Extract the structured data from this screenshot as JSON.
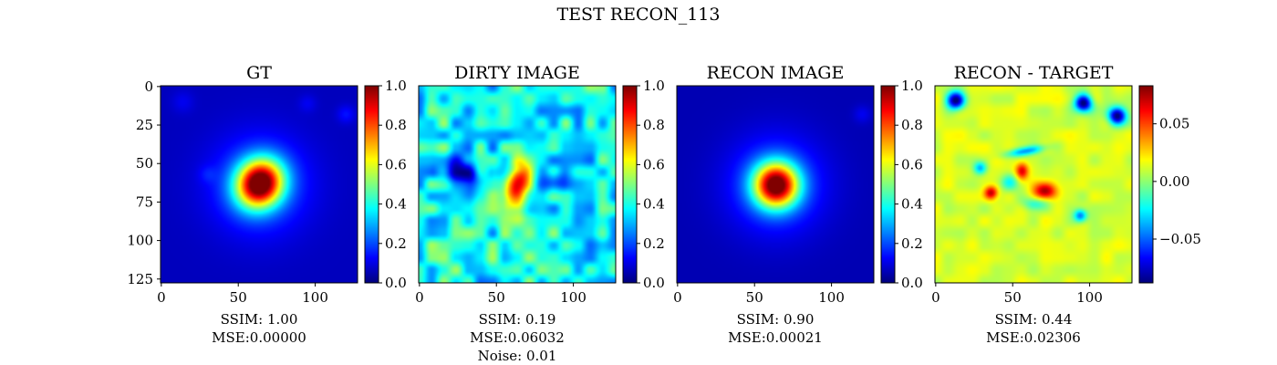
{
  "figure": {
    "title": "TEST RECON_113"
  },
  "chart_data": [
    {
      "type": "heatmap",
      "title": "GT",
      "xticks": [
        "0",
        "50",
        "100"
      ],
      "yticks": [
        "0",
        "25",
        "50",
        "75",
        "100",
        "125"
      ],
      "xlim": [
        0,
        128
      ],
      "ylim": [
        128,
        0
      ],
      "colormap": "jet",
      "image": {
        "background": 0.06,
        "blobs": [
          {
            "x": 64,
            "y": 63,
            "sigma_x": 10,
            "sigma_y": 11,
            "amplitude": 0.92,
            "angle": 35
          },
          {
            "x": 64,
            "y": 64,
            "sigma_x": 22,
            "sigma_y": 22,
            "amplitude": 0.18,
            "angle": 0
          },
          {
            "x": 120,
            "y": 18,
            "sigma_x": 4,
            "sigma_y": 4,
            "amplitude": 0.08,
            "angle": 0
          },
          {
            "x": 95,
            "y": 11,
            "sigma_x": 4,
            "sigma_y": 4,
            "amplitude": 0.05,
            "angle": 0
          },
          {
            "x": 14,
            "y": 10,
            "sigma_x": 5,
            "sigma_y": 5,
            "amplitude": 0.05,
            "angle": 0
          },
          {
            "x": 30,
            "y": 57,
            "sigma_x": 4,
            "sigma_y": 4,
            "amplitude": 0.05,
            "angle": 0
          }
        ]
      },
      "colorbar": {
        "min": 0.0,
        "max": 1.0,
        "ticks": [
          "0.0",
          "0.2",
          "0.4",
          "0.6",
          "0.8",
          "1.0"
        ]
      },
      "metrics": [
        "SSIM: 1.00",
        "MSE:0.00000"
      ]
    },
    {
      "type": "heatmap",
      "title": "DIRTY IMAGE",
      "xticks": [
        "0",
        "50",
        "100"
      ],
      "yticks": [],
      "xlim": [
        0,
        128
      ],
      "ylim": [
        128,
        0
      ],
      "colormap": "jet",
      "image": {
        "background": 0.38,
        "noise": 0.16,
        "blobs": [
          {
            "x": 64,
            "y": 62,
            "sigma_x": 5,
            "sigma_y": 9,
            "amplitude": 0.55,
            "angle": 20
          },
          {
            "x": 64,
            "y": 75,
            "sigma_x": 4,
            "sigma_y": 8,
            "amplitude": 0.22,
            "angle": 0
          },
          {
            "x": 24,
            "y": 55,
            "sigma_x": 8,
            "sigma_y": 6,
            "amplitude": -0.22,
            "angle": 0
          },
          {
            "x": 35,
            "y": 62,
            "sigma_x": 6,
            "sigma_y": 6,
            "amplitude": -0.2,
            "angle": 0
          },
          {
            "x": 88,
            "y": 60,
            "sigma_x": 6,
            "sigma_y": 6,
            "amplitude": -0.18,
            "angle": 0
          }
        ]
      },
      "colorbar": {
        "min": 0.0,
        "max": 1.0,
        "ticks": [
          "0.0",
          "0.2",
          "0.4",
          "0.6",
          "0.8",
          "1.0"
        ]
      },
      "metrics": [
        "SSIM: 0.19",
        "MSE:0.06032",
        "Noise: 0.01"
      ]
    },
    {
      "type": "heatmap",
      "title": "RECON IMAGE",
      "xticks": [
        "0",
        "50",
        "100"
      ],
      "yticks": [],
      "xlim": [
        0,
        128
      ],
      "ylim": [
        128,
        0
      ],
      "colormap": "jet",
      "image": {
        "background": 0.05,
        "blobs": [
          {
            "x": 64,
            "y": 64,
            "sigma_x": 10,
            "sigma_y": 10,
            "amplitude": 0.88,
            "angle": 0
          },
          {
            "x": 64,
            "y": 64,
            "sigma_x": 22,
            "sigma_y": 22,
            "amplitude": 0.18,
            "angle": 0
          },
          {
            "x": 120,
            "y": 18,
            "sigma_x": 4,
            "sigma_y": 4,
            "amplitude": 0.06,
            "angle": 0
          }
        ]
      },
      "colorbar": {
        "min": 0.0,
        "max": 1.0,
        "ticks": [
          "0.0",
          "0.2",
          "0.4",
          "0.6",
          "0.8",
          "1.0"
        ]
      },
      "metrics": [
        "SSIM: 0.90",
        "MSE:0.00021"
      ]
    },
    {
      "type": "heatmap",
      "title": "RECON - TARGET",
      "xticks": [
        "0",
        "50",
        "100"
      ],
      "yticks": [],
      "xlim": [
        0,
        128
      ],
      "ylim": [
        128,
        0
      ],
      "colormap": "jet",
      "image": {
        "background": 0.012,
        "noise": 0.008,
        "blobs": [
          {
            "x": 13,
            "y": 9,
            "sigma_x": 4,
            "sigma_y": 4,
            "amplitude": -0.1,
            "angle": 0
          },
          {
            "x": 96,
            "y": 11,
            "sigma_x": 4,
            "sigma_y": 4,
            "amplitude": -0.1,
            "angle": 0
          },
          {
            "x": 118,
            "y": 19,
            "sigma_x": 4,
            "sigma_y": 4,
            "amplitude": -0.1,
            "angle": 0
          },
          {
            "x": 56,
            "y": 55,
            "sigma_x": 3,
            "sigma_y": 4,
            "amplitude": 0.06,
            "angle": 0
          },
          {
            "x": 71,
            "y": 68,
            "sigma_x": 5,
            "sigma_y": 4,
            "amplitude": 0.07,
            "angle": 0
          },
          {
            "x": 36,
            "y": 69,
            "sigma_x": 3,
            "sigma_y": 3,
            "amplitude": 0.06,
            "angle": 0
          },
          {
            "x": 58,
            "y": 42,
            "sigma_x": 9,
            "sigma_y": 2,
            "amplitude": -0.05,
            "angle": -10
          },
          {
            "x": 29,
            "y": 53,
            "sigma_x": 3,
            "sigma_y": 3,
            "amplitude": -0.05,
            "angle": 0
          },
          {
            "x": 94,
            "y": 84,
            "sigma_x": 3,
            "sigma_y": 3,
            "amplitude": -0.06,
            "angle": 0
          },
          {
            "x": 48,
            "y": 62,
            "sigma_x": 4,
            "sigma_y": 4,
            "amplitude": -0.035,
            "angle": 0
          },
          {
            "x": 65,
            "y": 76,
            "sigma_x": 6,
            "sigma_y": 3,
            "amplitude": -0.03,
            "angle": 0
          }
        ]
      },
      "colorbar": {
        "min": -0.088,
        "max": 0.083,
        "ticks": [
          "0.05",
          "0.00",
          "−0.05"
        ],
        "tick_values": [
          0.05,
          0.0,
          -0.05
        ]
      },
      "metrics": [
        "SSIM: 0.44",
        "MSE:0.02306"
      ]
    }
  ]
}
